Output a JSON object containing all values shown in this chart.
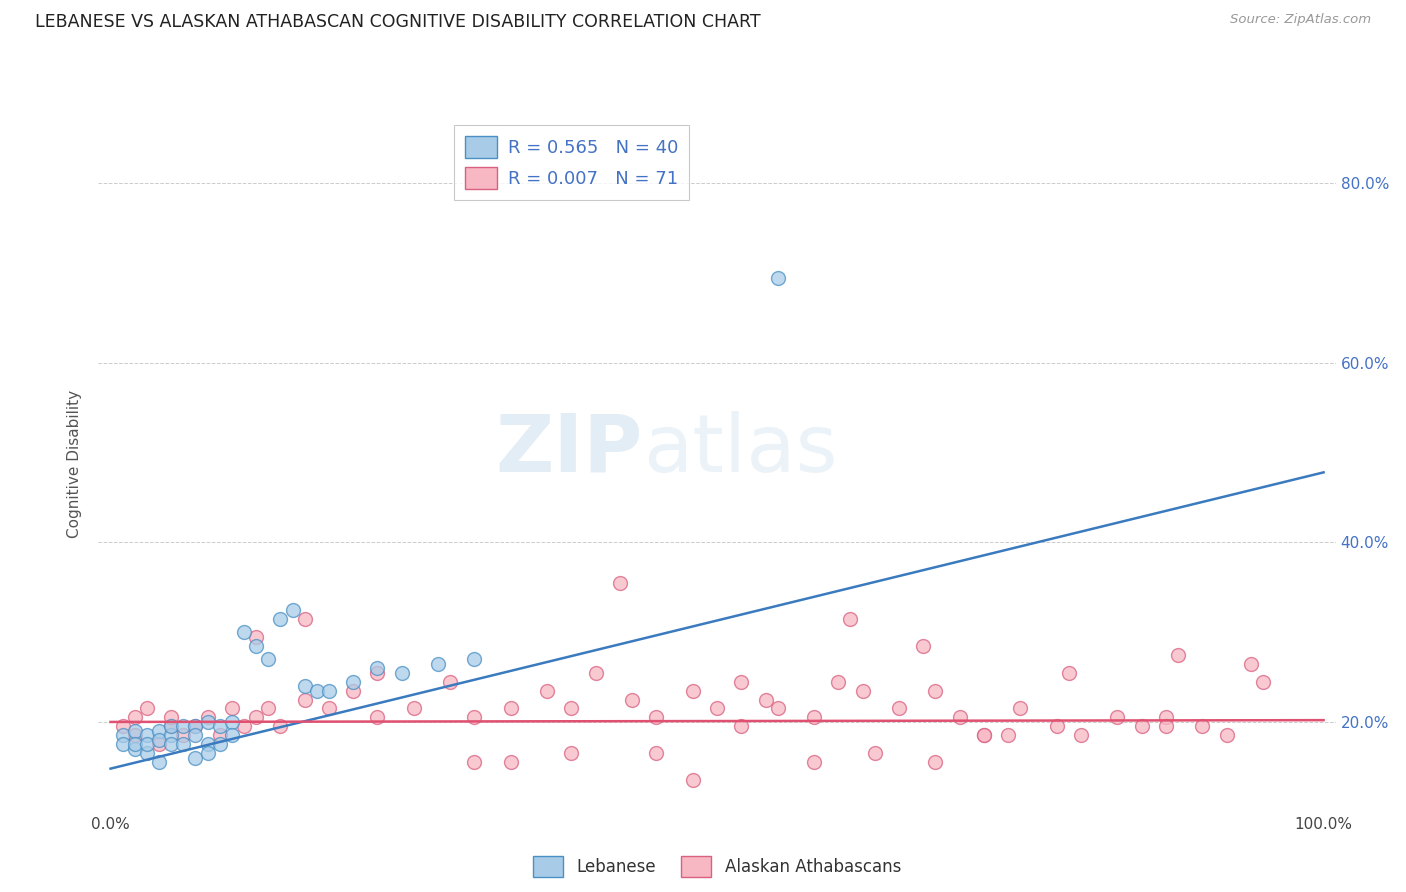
{
  "title": "LEBANESE VS ALASKAN ATHABASCAN COGNITIVE DISABILITY CORRELATION CHART",
  "source": "Source: ZipAtlas.com",
  "ylabel": "Cognitive Disability",
  "legend_label_1": "Lebanese",
  "legend_label_2": "Alaskan Athabascans",
  "r1": 0.565,
  "n1": 40,
  "r2": 0.007,
  "n2": 71,
  "blue_color": "#a8cce8",
  "blue_edge_color": "#4a90c4",
  "pink_color": "#f7b8c4",
  "pink_edge_color": "#d96080",
  "blue_line_color": "#3a7abf",
  "pink_line_color": "#e05070",
  "watermark_zip": "ZIP",
  "watermark_atlas": "atlas",
  "ylim_min": 0.1,
  "ylim_max": 0.875,
  "xlim_min": -0.01,
  "xlim_max": 1.01,
  "yticks": [
    0.2,
    0.4,
    0.6,
    0.8
  ],
  "ytick_labels": [
    "20.0%",
    "40.0%",
    "60.0%",
    "80.0%"
  ],
  "blue_line_x0": 0.0,
  "blue_line_y0": 0.148,
  "blue_line_x1": 1.0,
  "blue_line_y1": 0.478,
  "pink_line_x0": 0.0,
  "pink_line_y0": 0.2,
  "pink_line_x1": 1.0,
  "pink_line_y1": 0.202,
  "blue_scatter_x": [
    0.01,
    0.01,
    0.02,
    0.02,
    0.02,
    0.03,
    0.03,
    0.03,
    0.04,
    0.04,
    0.04,
    0.05,
    0.05,
    0.05,
    0.06,
    0.06,
    0.07,
    0.07,
    0.07,
    0.08,
    0.08,
    0.08,
    0.09,
    0.09,
    0.1,
    0.1,
    0.11,
    0.12,
    0.13,
    0.14,
    0.15,
    0.16,
    0.17,
    0.18,
    0.2,
    0.22,
    0.24,
    0.27,
    0.3,
    0.55
  ],
  "blue_scatter_y": [
    0.185,
    0.175,
    0.19,
    0.17,
    0.175,
    0.185,
    0.165,
    0.175,
    0.19,
    0.18,
    0.155,
    0.185,
    0.175,
    0.195,
    0.195,
    0.175,
    0.195,
    0.185,
    0.16,
    0.2,
    0.175,
    0.165,
    0.195,
    0.175,
    0.2,
    0.185,
    0.3,
    0.285,
    0.27,
    0.315,
    0.325,
    0.24,
    0.235,
    0.235,
    0.245,
    0.26,
    0.255,
    0.265,
    0.27,
    0.695
  ],
  "pink_scatter_x": [
    0.01,
    0.02,
    0.02,
    0.03,
    0.04,
    0.05,
    0.05,
    0.06,
    0.07,
    0.08,
    0.09,
    0.1,
    0.11,
    0.12,
    0.13,
    0.14,
    0.16,
    0.18,
    0.2,
    0.22,
    0.25,
    0.28,
    0.3,
    0.33,
    0.36,
    0.38,
    0.4,
    0.43,
    0.45,
    0.48,
    0.5,
    0.52,
    0.55,
    0.58,
    0.6,
    0.62,
    0.65,
    0.68,
    0.7,
    0.72,
    0.75,
    0.78,
    0.8,
    0.83,
    0.85,
    0.87,
    0.88,
    0.9,
    0.92,
    0.95,
    0.3,
    0.38,
    0.45,
    0.52,
    0.58,
    0.63,
    0.68,
    0.72,
    0.48,
    0.33,
    0.22,
    0.16,
    0.12,
    0.42,
    0.54,
    0.61,
    0.67,
    0.74,
    0.79,
    0.87,
    0.94
  ],
  "pink_scatter_y": [
    0.195,
    0.205,
    0.185,
    0.215,
    0.175,
    0.195,
    0.205,
    0.185,
    0.195,
    0.205,
    0.185,
    0.215,
    0.195,
    0.205,
    0.215,
    0.195,
    0.225,
    0.215,
    0.235,
    0.205,
    0.215,
    0.245,
    0.205,
    0.215,
    0.235,
    0.215,
    0.255,
    0.225,
    0.205,
    0.235,
    0.215,
    0.245,
    0.215,
    0.205,
    0.245,
    0.235,
    0.215,
    0.235,
    0.205,
    0.185,
    0.215,
    0.195,
    0.185,
    0.205,
    0.195,
    0.205,
    0.275,
    0.195,
    0.185,
    0.245,
    0.155,
    0.165,
    0.165,
    0.195,
    0.155,
    0.165,
    0.155,
    0.185,
    0.135,
    0.155,
    0.255,
    0.315,
    0.295,
    0.355,
    0.225,
    0.315,
    0.285,
    0.185,
    0.255,
    0.195,
    0.265
  ]
}
